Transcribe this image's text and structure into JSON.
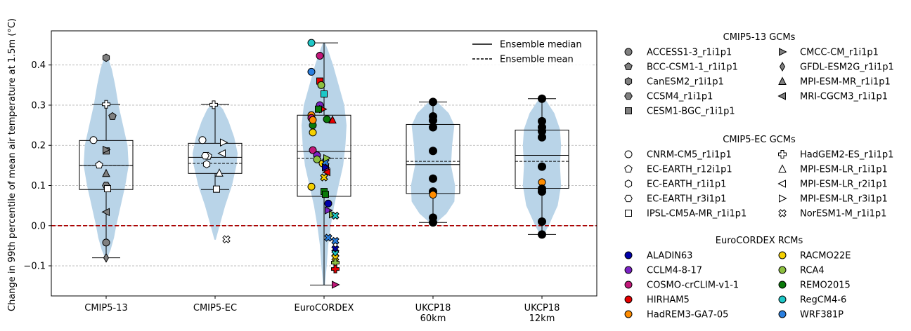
{
  "chart_data": {
    "type": "box-violin-strip",
    "title": "",
    "xlabel": "",
    "ylabel": "Change in 99th percentile of mean air temperature at 1.5m (°C)",
    "ylim": [
      -0.175,
      0.485
    ],
    "yticks": [
      -0.1,
      0.0,
      0.1,
      0.2,
      0.3,
      0.4
    ],
    "ytick_labels": [
      "−0.1",
      "0.0",
      "0.1",
      "0.2",
      "0.3",
      "0.4"
    ],
    "grid": "horizontal dashed",
    "zero_line": {
      "value": 0.0,
      "color": "#aa0000",
      "style": "dashed"
    },
    "categories": [
      {
        "label": "CMIP5-13",
        "lines": [
          "CMIP5-13"
        ]
      },
      {
        "label": "CMIP5-EC",
        "lines": [
          "CMIP5-EC"
        ]
      },
      {
        "label": "EuroCORDEX",
        "lines": [
          "EuroCORDEX"
        ]
      },
      {
        "label": "UKCP18 60km",
        "lines": [
          "UKCP18",
          "60km"
        ]
      },
      {
        "label": "UKCP18 12km",
        "lines": [
          "UKCP18",
          "12km"
        ]
      }
    ],
    "boxes": [
      {
        "category": "CMIP5-13",
        "whisker_low": -0.08,
        "q1": 0.09,
        "median": 0.15,
        "mean": 0.15,
        "q3": 0.212,
        "whisker_high": 0.302
      },
      {
        "category": "CMIP5-EC",
        "whisker_low": 0.09,
        "q1": 0.13,
        "median": 0.17,
        "mean": 0.155,
        "q3": 0.205,
        "whisker_high": 0.302
      },
      {
        "category": "EuroCORDEX",
        "whisker_low": -0.148,
        "q1": 0.073,
        "median": 0.185,
        "mean": 0.168,
        "q3": 0.275,
        "whisker_high": 0.455
      },
      {
        "category": "UKCP18 60km",
        "whisker_low": 0.008,
        "q1": 0.08,
        "median": 0.152,
        "mean": 0.16,
        "q3": 0.252,
        "whisker_high": 0.308
      },
      {
        "category": "UKCP18 12km",
        "whisker_low": -0.022,
        "q1": 0.093,
        "median": 0.175,
        "mean": 0.16,
        "q3": 0.238,
        "whisker_high": 0.316
      }
    ],
    "violins": [
      {
        "category": "CMIP5-13",
        "color": "#b9d4e8",
        "profile": [
          [
            -0.08,
            0.05
          ],
          [
            -0.06,
            0.2
          ],
          [
            -0.03,
            0.35
          ],
          [
            0.0,
            0.45
          ],
          [
            0.05,
            0.65
          ],
          [
            0.1,
            0.85
          ],
          [
            0.15,
            1.0
          ],
          [
            0.2,
            0.95
          ],
          [
            0.25,
            0.75
          ],
          [
            0.3,
            0.55
          ],
          [
            0.35,
            0.4
          ],
          [
            0.39,
            0.25
          ],
          [
            0.415,
            0.1
          ]
        ]
      },
      {
        "category": "CMIP5-EC",
        "color": "#b9d4e8",
        "profile": [
          [
            -0.035,
            0.03
          ],
          [
            0.0,
            0.2
          ],
          [
            0.05,
            0.45
          ],
          [
            0.1,
            0.75
          ],
          [
            0.15,
            0.95
          ],
          [
            0.18,
            1.0
          ],
          [
            0.22,
            0.85
          ],
          [
            0.26,
            0.6
          ],
          [
            0.29,
            0.35
          ],
          [
            0.305,
            0.1
          ]
        ]
      },
      {
        "category": "EuroCORDEX",
        "color": "#b9d4e8",
        "profile": [
          [
            -0.148,
            0.04
          ],
          [
            -0.1,
            0.12
          ],
          [
            -0.05,
            0.18
          ],
          [
            0.0,
            0.3
          ],
          [
            0.05,
            0.45
          ],
          [
            0.1,
            0.65
          ],
          [
            0.15,
            0.85
          ],
          [
            0.2,
            0.95
          ],
          [
            0.25,
            1.0
          ],
          [
            0.3,
            0.9
          ],
          [
            0.35,
            0.65
          ],
          [
            0.4,
            0.4
          ],
          [
            0.43,
            0.22
          ],
          [
            0.455,
            0.05
          ]
        ]
      },
      {
        "category": "UKCP18 60km",
        "color": "#b9d4e8",
        "profile": [
          [
            0.005,
            0.1
          ],
          [
            0.03,
            0.6
          ],
          [
            0.06,
            0.95
          ],
          [
            0.1,
            0.98
          ],
          [
            0.15,
            0.8
          ],
          [
            0.2,
            0.85
          ],
          [
            0.25,
            0.95
          ],
          [
            0.28,
            0.7
          ],
          [
            0.305,
            0.25
          ]
        ]
      },
      {
        "category": "UKCP18 12km",
        "color": "#b9d4e8",
        "profile": [
          [
            -0.022,
            0.08
          ],
          [
            0.0,
            0.3
          ],
          [
            0.05,
            0.7
          ],
          [
            0.1,
            0.85
          ],
          [
            0.15,
            0.8
          ],
          [
            0.2,
            0.85
          ],
          [
            0.24,
            0.8
          ],
          [
            0.28,
            0.55
          ],
          [
            0.31,
            0.2
          ]
        ]
      }
    ],
    "points": [
      {
        "category": "CMIP5-13",
        "model": "ACCESS1-3_r1i1p1",
        "y": -0.042
      },
      {
        "category": "CMIP5-13",
        "model": "BCC-CSM1-1_r1i1p1",
        "y": 0.272
      },
      {
        "category": "CMIP5-13",
        "model": "CanESM2_r1i1p1",
        "y": 0.418
      },
      {
        "category": "CMIP5-13",
        "model": "CCSM4_r1i1p1",
        "y": 0.1
      },
      {
        "category": "CMIP5-13",
        "model": "CESM1-BGC_r1i1p1",
        "y": 0.186
      },
      {
        "category": "CMIP5-13",
        "model": "CMCC-CM_r1i1p1",
        "y": 0.189
      },
      {
        "category": "CMIP5-13",
        "model": "GFDL-ESM2G_r1i1p1",
        "y": -0.08
      },
      {
        "category": "CMIP5-13",
        "model": "MPI-ESM-MR_r1i1p1",
        "y": 0.13
      },
      {
        "category": "CMIP5-13",
        "model": "MRI-CGCM3_r1i1p1",
        "y": 0.034
      },
      {
        "category": "CMIP5-13",
        "model": "CNRM-CM5_r1i1p1",
        "y": 0.213
      },
      {
        "category": "CMIP5-13",
        "model": "EC-EARTH_r12i1p1",
        "y": 0.151
      },
      {
        "category": "CMIP5-13",
        "model": "HadGEM2-ES_r1i1p1",
        "y": 0.302
      },
      {
        "category": "CMIP5-13",
        "model": "IPSL-CM5A-MR_r1i1p1",
        "y": 0.092
      },
      {
        "category": "CMIP5-EC",
        "model": "CNRM-CM5_r1i1p1",
        "y": 0.213
      },
      {
        "category": "CMIP5-EC",
        "model": "EC-EARTH_r12i1p1",
        "y": 0.173
      },
      {
        "category": "CMIP5-EC",
        "model": "EC-EARTH_r1i1p1",
        "y": 0.153
      },
      {
        "category": "CMIP5-EC",
        "model": "EC-EARTH_r3i1p1",
        "y": 0.174
      },
      {
        "category": "CMIP5-EC",
        "model": "IPSL-CM5A-MR_r1i1p1",
        "y": 0.091
      },
      {
        "category": "CMIP5-EC",
        "model": "HadGEM2-ES_r1i1p1",
        "y": 0.301
      },
      {
        "category": "CMIP5-EC",
        "model": "MPI-ESM-LR_r1i1p1",
        "y": 0.131
      },
      {
        "category": "CMIP5-EC",
        "model": "MPI-ESM-LR_r2i1p1",
        "y": 0.18
      },
      {
        "category": "CMIP5-EC",
        "model": "MPI-ESM-LR_r3i1p1",
        "y": 0.207
      },
      {
        "category": "CMIP5-EC",
        "model": "NorESM1-M_r1i1p1",
        "y": -0.034
      },
      {
        "category": "EuroCORDEX",
        "model": "ALADIN63",
        "y": 0.055
      },
      {
        "category": "EuroCORDEX",
        "model": "CCLM4-8-17",
        "y": 0.3
      },
      {
        "category": "EuroCORDEX",
        "model": "COSMO-crCLIM-v1-1",
        "y": 0.423
      },
      {
        "category": "EuroCORDEX",
        "model": "HIRHAM5",
        "y": 0.36
      },
      {
        "category": "EuroCORDEX",
        "model": "HadREM3-GA7-05",
        "y": 0.275
      },
      {
        "category": "EuroCORDEX",
        "model": "RACMO22E",
        "y": 0.097
      },
      {
        "category": "EuroCORDEX",
        "model": "RCA4",
        "y": 0.35
      },
      {
        "category": "EuroCORDEX",
        "model": "REMO2015",
        "y": 0.25
      },
      {
        "category": "EuroCORDEX",
        "model": "RegCM4-6",
        "y": 0.455
      },
      {
        "category": "EuroCORDEX",
        "model": "WRF381P",
        "y": 0.383
      },
      {
        "category": "EuroCORDEX",
        "model": "RegCM4-6",
        "y": 0.328
      },
      {
        "category": "EuroCORDEX",
        "model": "COSMO-crCLIM-v1-1",
        "y": 0.268
      },
      {
        "category": "EuroCORDEX",
        "model": "HadREM3-GA7-05",
        "y": 0.263
      },
      {
        "category": "EuroCORDEX",
        "model": "RACMO22E",
        "y": 0.232
      },
      {
        "category": "EuroCORDEX",
        "model": "COSMO-crCLIM-v1-1",
        "y": 0.188
      },
      {
        "category": "EuroCORDEX",
        "model": "CCLM4-8-17",
        "y": 0.175
      },
      {
        "category": "EuroCORDEX",
        "model": "RCA4",
        "y": 0.165
      },
      {
        "category": "EuroCORDEX",
        "model": "RACMO22E",
        "y": 0.155
      },
      {
        "category": "EuroCORDEX",
        "model": "REMO2015",
        "y": 0.085
      },
      {
        "category": "EuroCORDEX",
        "model": "REMO2015",
        "y": 0.078
      },
      {
        "category": "EuroCORDEX",
        "model": "CCLM4-8-17",
        "y": 0.038
      },
      {
        "category": "EuroCORDEX",
        "model": "RCA4",
        "y": 0.028
      },
      {
        "category": "EuroCORDEX",
        "model": "COSMO-crCLIM-v1-1",
        "y": 0.145
      },
      {
        "category": "EuroCORDEX",
        "model": "HIRHAM5",
        "y": 0.133
      },
      {
        "category": "EuroCORDEX",
        "model": "RACMO22E",
        "y": 0.12
      },
      {
        "category": "EuroCORDEX",
        "model": "WRF381P",
        "y": 0.158
      },
      {
        "category": "EuroCORDEX",
        "model": "RegCM4-6",
        "y": 0.025
      },
      {
        "category": "EuroCORDEX",
        "model": "WRF381P",
        "y": -0.03
      },
      {
        "category": "EuroCORDEX",
        "model": "WRF381P",
        "y": -0.038
      },
      {
        "category": "EuroCORDEX",
        "model": "ALADIN63",
        "y": -0.058
      },
      {
        "category": "EuroCORDEX",
        "model": "RegCM4-6",
        "y": -0.07
      },
      {
        "category": "EuroCORDEX",
        "model": "RACMO22E",
        "y": -0.08
      },
      {
        "category": "EuroCORDEX",
        "model": "RCA4",
        "y": -0.092
      },
      {
        "category": "EuroCORDEX",
        "model": "HIRHAM5",
        "y": -0.108
      },
      {
        "category": "EuroCORDEX",
        "model": "COSMO-crCLIM-v1-1",
        "y": -0.147
      },
      {
        "category": "EuroCORDEX",
        "model": "HIRHAM5",
        "y": 0.29
      },
      {
        "category": "EuroCORDEX",
        "model": "REMO2015",
        "y": 0.29
      },
      {
        "category": "EuroCORDEX",
        "model": "REMO2015",
        "y": 0.265
      },
      {
        "category": "EuroCORDEX",
        "model": "HIRHAM5",
        "y": 0.263
      },
      {
        "category": "EuroCORDEX",
        "model": "ALADIN63",
        "y": 0.145
      },
      {
        "category": "EuroCORDEX",
        "model": "RCA4",
        "y": 0.168
      },
      {
        "category": "UKCP18 60km",
        "model": "UKCP18 member",
        "y": 0.308
      },
      {
        "category": "UKCP18 60km",
        "model": "UKCP18 member",
        "y": 0.272
      },
      {
        "category": "UKCP18 60km",
        "model": "UKCP18 member",
        "y": 0.262
      },
      {
        "category": "UKCP18 60km",
        "model": "UKCP18 member",
        "y": 0.245
      },
      {
        "category": "UKCP18 60km",
        "model": "UKCP18 member",
        "y": 0.186
      },
      {
        "category": "UKCP18 60km",
        "model": "UKCP18 member",
        "y": 0.117
      },
      {
        "category": "UKCP18 60km",
        "model": "UKCP18 member",
        "y": 0.085
      },
      {
        "category": "UKCP18 60km",
        "model": "HadREM3-GA7-05",
        "y": 0.077
      },
      {
        "category": "UKCP18 60km",
        "model": "UKCP18 member",
        "y": 0.02
      },
      {
        "category": "UKCP18 60km",
        "model": "UKCP18 member",
        "y": 0.008
      },
      {
        "category": "UKCP18 12km",
        "model": "UKCP18 member",
        "y": 0.316
      },
      {
        "category": "UKCP18 12km",
        "model": "UKCP18 member",
        "y": 0.26
      },
      {
        "category": "UKCP18 12km",
        "model": "UKCP18 member",
        "y": 0.245
      },
      {
        "category": "UKCP18 12km",
        "model": "UKCP18 member",
        "y": 0.235
      },
      {
        "category": "UKCP18 12km",
        "model": "UKCP18 member",
        "y": 0.22
      },
      {
        "category": "UKCP18 12km",
        "model": "UKCP18 member",
        "y": 0.147
      },
      {
        "category": "UKCP18 12km",
        "model": "HadREM3-GA7-05",
        "y": 0.108
      },
      {
        "category": "UKCP18 12km",
        "model": "UKCP18 member",
        "y": 0.092
      },
      {
        "category": "UKCP18 12km",
        "model": "UKCP18 member",
        "y": 0.085
      },
      {
        "category": "UKCP18 12km",
        "model": "UKCP18 member",
        "y": 0.01
      },
      {
        "category": "UKCP18 12km",
        "model": "UKCP18 member",
        "y": -0.022
      }
    ],
    "in_plot_legend": [
      {
        "label": "Ensemble median",
        "style": "solid"
      },
      {
        "label": "Ensemble mean",
        "style": "dashed"
      }
    ],
    "legend_groups": [
      {
        "title": "CMIP5-13 GCMs",
        "entries": [
          {
            "label": "ACCESS1-3_r1i1p1",
            "marker": "circle",
            "color": "#808080"
          },
          {
            "label": "BCC-CSM1-1_r1i1p1",
            "marker": "pentagon",
            "color": "#808080"
          },
          {
            "label": "CanESM2_r1i1p1",
            "marker": "hexagon",
            "color": "#808080"
          },
          {
            "label": "CCSM4_r1i1p1",
            "marker": "hexagon2",
            "color": "#808080"
          },
          {
            "label": "CESM1-BGC_r1i1p1",
            "marker": "square",
            "color": "#808080"
          },
          {
            "label": "CMCC-CM_r1i1p1",
            "marker": "triangle-right",
            "color": "#808080"
          },
          {
            "label": "GFDL-ESM2G_r1i1p1",
            "marker": "thin-diamond",
            "color": "#808080"
          },
          {
            "label": "MPI-ESM-MR_r1i1p1",
            "marker": "triangle-up",
            "color": "#808080"
          },
          {
            "label": "MRI-CGCM3_r1i1p1",
            "marker": "triangle-left",
            "color": "#808080"
          }
        ]
      },
      {
        "title": "CMIP5-EC GCMs",
        "entries": [
          {
            "label": "CNRM-CM5_r1i1p1",
            "marker": "circle",
            "color": "#ffffff"
          },
          {
            "label": "EC-EARTH_r12i1p1",
            "marker": "pentagon",
            "color": "#ffffff"
          },
          {
            "label": "EC-EARTH_r1i1p1",
            "marker": "hexagon",
            "color": "#ffffff"
          },
          {
            "label": "EC-EARTH_r3i1p1",
            "marker": "hexagon2",
            "color": "#ffffff"
          },
          {
            "label": "IPSL-CM5A-MR_r1i1p1",
            "marker": "square",
            "color": "#ffffff"
          },
          {
            "label": "HadGEM2-ES_r1i1p1",
            "marker": "plus",
            "color": "#ffffff"
          },
          {
            "label": "MPI-ESM-LR_r1i1p1",
            "marker": "triangle-up",
            "color": "#ffffff"
          },
          {
            "label": "MPI-ESM-LR_r2i1p1",
            "marker": "triangle-left",
            "color": "#ffffff"
          },
          {
            "label": "MPI-ESM-LR_r3i1p1",
            "marker": "triangle-right",
            "color": "#ffffff"
          },
          {
            "label": "NorESM1-M_r1i1p1",
            "marker": "x",
            "color": "#ffffff"
          }
        ]
      },
      {
        "title": "EuroCORDEX RCMs",
        "entries": [
          {
            "label": "ALADIN63",
            "marker": "circle",
            "color": "#0000aa"
          },
          {
            "label": "CCLM4-8-17",
            "marker": "circle",
            "color": "#7b22c4"
          },
          {
            "label": "COSMO-crCLIM-v1-1",
            "marker": "circle",
            "color": "#c2187a"
          },
          {
            "label": "HIRHAM5",
            "marker": "circle",
            "color": "#e60000"
          },
          {
            "label": "HadREM3-GA7-05",
            "marker": "circle",
            "color": "#ff8c00"
          },
          {
            "label": "RACMO22E",
            "marker": "circle",
            "color": "#f5d000"
          },
          {
            "label": "RCA4",
            "marker": "circle",
            "color": "#8cbf3f"
          },
          {
            "label": "REMO2015",
            "marker": "circle",
            "color": "#0a7a0a"
          },
          {
            "label": "RegCM4-6",
            "marker": "circle",
            "color": "#1ec8c8"
          },
          {
            "label": "WRF381P",
            "marker": "circle",
            "color": "#2a7fe0"
          }
        ]
      }
    ],
    "ukcp_color": "#000000"
  }
}
